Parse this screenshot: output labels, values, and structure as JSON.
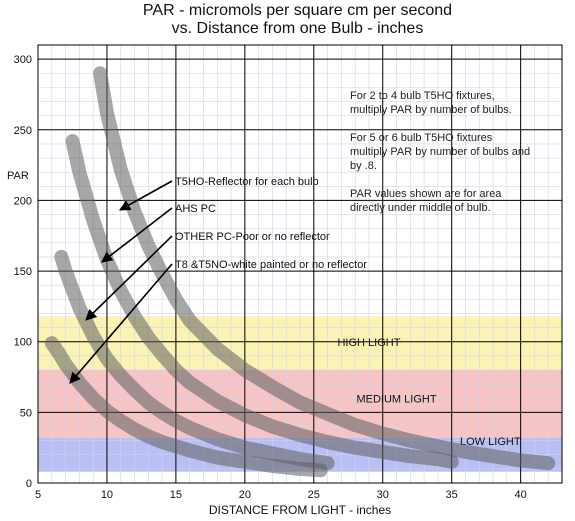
{
  "chart_data": {
    "type": "line",
    "title_line1": "PAR - micromols per square cm per second",
    "title_line2": "vs. Distance from one Bulb - inches",
    "xlabel": "DISTANCE FROM LIGHT - inches",
    "ylabel": "PAR",
    "xlim": [
      5,
      43
    ],
    "ylim": [
      0,
      310
    ],
    "x_ticks": [
      5,
      10,
      15,
      20,
      25,
      30,
      35,
      40
    ],
    "y_ticks": [
      0,
      50,
      100,
      150,
      200,
      250,
      300
    ],
    "grid": true,
    "bands": [
      {
        "label": "HIGH LIGHT",
        "y_range": [
          80,
          118
        ],
        "color": "#fbf3b4"
      },
      {
        "label": "MEDIUM LIGHT",
        "y_range": [
          32,
          80
        ],
        "color": "#f6c4c4"
      },
      {
        "label": "LOW LIGHT",
        "y_range": [
          8,
          32
        ],
        "color": "#b9bff2"
      }
    ],
    "series": [
      {
        "name": "T5HO-Reflector for each bulb",
        "x": [
          9.5,
          10,
          11,
          12,
          13,
          14,
          15,
          16,
          18,
          20,
          22,
          24,
          26,
          28,
          30,
          32,
          34,
          36,
          38,
          40,
          42
        ],
        "y": [
          290,
          262,
          222,
          192,
          168,
          148,
          130,
          115,
          95,
          80,
          68,
          57,
          49,
          41,
          35,
          30,
          26,
          22,
          19,
          16,
          14
        ]
      },
      {
        "name": "AHS PC",
        "x": [
          7.5,
          8,
          9,
          10,
          11,
          12,
          13,
          14,
          15,
          16,
          18,
          20,
          22,
          24,
          26,
          28,
          30,
          32,
          34,
          35
        ],
        "y": [
          242,
          220,
          186,
          158,
          136,
          118,
          103,
          91,
          80,
          71,
          58,
          48,
          40,
          34,
          29,
          25,
          22,
          19,
          17,
          15
        ]
      },
      {
        "name": "OTHER PC-Poor or no reflector",
        "x": [
          6.7,
          7,
          8,
          9,
          10,
          11,
          12,
          13,
          14,
          15,
          16,
          18,
          20,
          22,
          24,
          26
        ],
        "y": [
          160,
          150,
          124,
          104,
          88,
          76,
          66,
          57,
          50,
          44,
          39,
          31,
          25,
          21,
          17,
          14
        ]
      },
      {
        "name": "T8 &T5NO-white painted or no reflector",
        "x": [
          6,
          6.5,
          7,
          8,
          9,
          10,
          11,
          12,
          13,
          14,
          15,
          16,
          18,
          20,
          22,
          24,
          25.5
        ],
        "y": [
          99,
          92,
          84,
          71,
          60,
          51,
          44,
          38,
          33,
          29,
          26,
          23,
          18,
          15,
          12,
          10,
          9
        ]
      }
    ],
    "annotations": [
      {
        "text": "T5HO-Reflector for each bulb",
        "points_to_series": 0
      },
      {
        "text": "AHS PC",
        "points_to_series": 1
      },
      {
        "text": "OTHER PC-Poor or no reflector",
        "points_to_series": 2
      },
      {
        "text": "T8 &T5NO-white painted or no reflector",
        "points_to_series": 3
      }
    ],
    "notes": [
      "For 2 to 4 bulb T5HO fixtures,",
      "multiply PAR by number of bulbs.",
      "For 5 or 6  bulb T5HO fixtures",
      "multiply PAR by number of bulbs and",
      "by .8.",
      "PAR values shown are for area",
      "directly under middle of bulb."
    ]
  }
}
